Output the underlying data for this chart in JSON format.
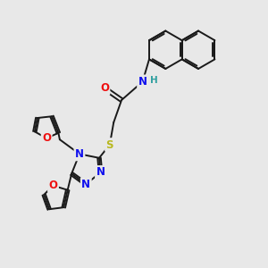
{
  "bg_color": "#e8e8e8",
  "bond_color": "#1a1a1a",
  "bond_width": 1.4,
  "atom_colors": {
    "C": "#1a1a1a",
    "N": "#1010ee",
    "O": "#ee1010",
    "S": "#b8b820",
    "H": "#30a0a0"
  },
  "font_size_atom": 8.5
}
